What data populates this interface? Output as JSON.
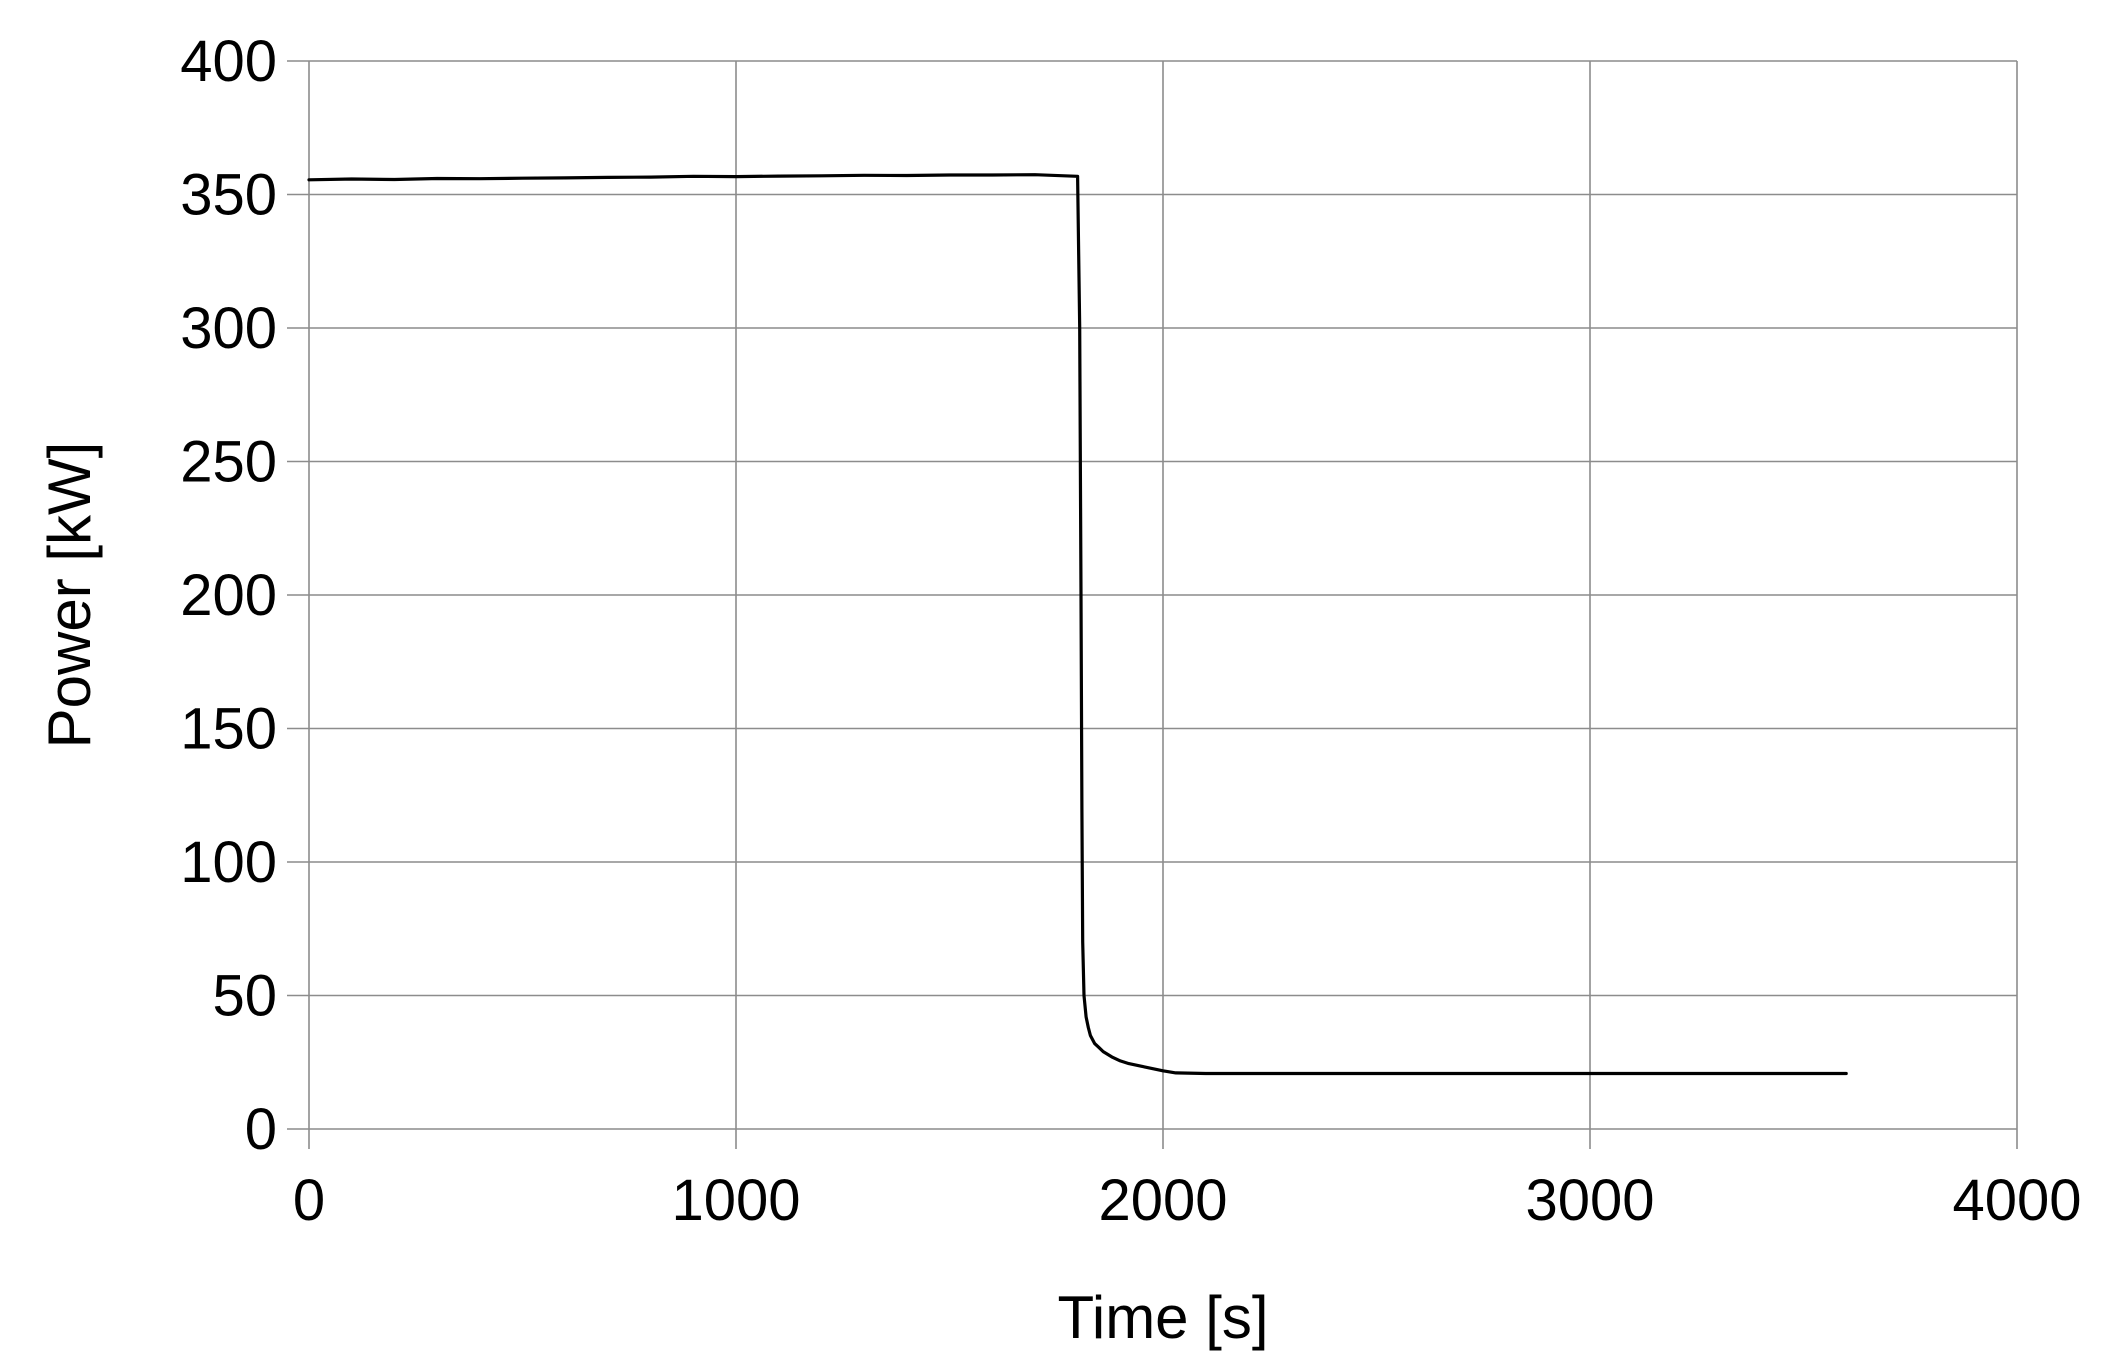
{
  "chart_data": {
    "type": "line",
    "title": "",
    "xlabel": "Time [s]",
    "ylabel": "Power [kW]",
    "xlim": [
      0,
      4000
    ],
    "ylim": [
      0,
      400
    ],
    "x_ticks": [
      0,
      1000,
      2000,
      3000,
      4000
    ],
    "y_ticks": [
      0,
      50,
      100,
      150,
      200,
      250,
      300,
      350,
      400
    ],
    "x_tick_labels": [
      "0",
      "1000",
      "2000",
      "3000",
      "4000"
    ],
    "y_tick_labels": [
      "0",
      "50",
      "100",
      "150",
      "200",
      "250",
      "300",
      "350",
      "400"
    ],
    "grid": true,
    "legend": "none",
    "series": [
      {
        "color": "#000000",
        "x": [
          0,
          100,
          200,
          300,
          400,
          500,
          600,
          700,
          800,
          900,
          1000,
          1100,
          1200,
          1300,
          1400,
          1500,
          1600,
          1700,
          1800,
          1805,
          1808,
          1810,
          1812,
          1815,
          1820,
          1825,
          1830,
          1840,
          1850,
          1860,
          1880,
          1900,
          1920,
          1950,
          2000,
          2030,
          2100,
          2200,
          2400,
          2600,
          2800,
          3000,
          3200,
          3400,
          3600
        ],
        "y": [
          355.5,
          355.8,
          355.6,
          356.0,
          355.9,
          356.1,
          356.2,
          356.4,
          356.5,
          356.8,
          356.7,
          356.9,
          357.0,
          357.2,
          357.1,
          357.3,
          357.3,
          357.4,
          356.8,
          300,
          200,
          120,
          70,
          50,
          42,
          38,
          35,
          32,
          30.5,
          29,
          27,
          25.5,
          24.5,
          23.5,
          21.8,
          21,
          20.8,
          20.8,
          20.8,
          20.8,
          20.8,
          20.8,
          20.8,
          20.8,
          20.8
        ]
      }
    ]
  }
}
